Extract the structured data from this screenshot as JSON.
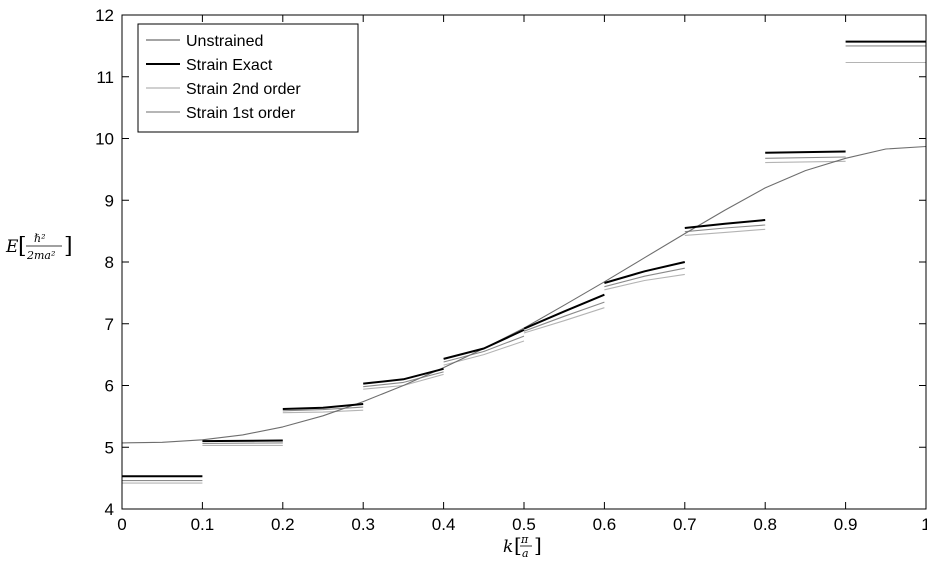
{
  "chart_data": {
    "type": "line",
    "title": "",
    "xlabel": "k",
    "xlabel_unit_num": "π",
    "xlabel_unit_den": "a",
    "ylabel": "E",
    "ylabel_unit_num": "ℏ²",
    "ylabel_unit_den": "2ma²",
    "xlim": [
      0,
      1
    ],
    "ylim": [
      4,
      12
    ],
    "xticks": [
      0,
      0.1,
      0.2,
      0.3,
      0.4,
      0.5,
      0.6,
      0.7,
      0.8,
      0.9,
      1
    ],
    "xtick_labels": [
      "0",
      "0.1",
      "0.2",
      "0.3",
      "0.4",
      "0.5",
      "0.6",
      "0.7",
      "0.8",
      "0.9",
      "1"
    ],
    "yticks": [
      4,
      5,
      6,
      7,
      8,
      9,
      10,
      11,
      12
    ],
    "ytick_labels": [
      "4",
      "5",
      "6",
      "7",
      "8",
      "9",
      "10",
      "11",
      "12"
    ],
    "grid": false,
    "legend_position": "top-left",
    "series": [
      {
        "name": "Unstrained",
        "color": "#6e6e6e",
        "style": "thin",
        "segments": [
          [
            [
              0,
              5.07
            ],
            [
              0.05,
              5.08
            ],
            [
              0.1,
              5.12
            ],
            [
              0.15,
              5.2
            ],
            [
              0.2,
              5.33
            ],
            [
              0.25,
              5.51
            ],
            [
              0.3,
              5.74
            ],
            [
              0.35,
              6.0
            ],
            [
              0.4,
              6.29
            ],
            [
              0.45,
              6.6
            ],
            [
              0.5,
              6.93
            ],
            [
              0.55,
              7.3
            ],
            [
              0.6,
              7.68
            ],
            [
              0.65,
              8.07
            ],
            [
              0.7,
              8.46
            ],
            [
              0.75,
              8.84
            ],
            [
              0.8,
              9.2
            ],
            [
              0.85,
              9.48
            ],
            [
              0.9,
              9.68
            ],
            [
              0.95,
              9.83
            ],
            [
              1.0,
              9.87
            ]
          ]
        ]
      },
      {
        "name": "Strain Exact",
        "color": "#000000",
        "style": "thick",
        "segments": [
          [
            [
              0,
              4.53
            ],
            [
              0.1,
              4.53
            ]
          ],
          [
            [
              0.1,
              5.1
            ],
            [
              0.2,
              5.11
            ]
          ],
          [
            [
              0.2,
              5.62
            ],
            [
              0.25,
              5.64
            ],
            [
              0.3,
              5.7
            ]
          ],
          [
            [
              0.3,
              6.03
            ],
            [
              0.35,
              6.1
            ],
            [
              0.4,
              6.27
            ]
          ],
          [
            [
              0.4,
              6.43
            ],
            [
              0.45,
              6.6
            ],
            [
              0.5,
              6.9
            ]
          ],
          [
            [
              0.5,
              6.92
            ],
            [
              0.55,
              7.2
            ],
            [
              0.6,
              7.47
            ]
          ],
          [
            [
              0.6,
              7.66
            ],
            [
              0.65,
              7.85
            ],
            [
              0.7,
              8.0
            ]
          ],
          [
            [
              0.7,
              8.55
            ],
            [
              0.75,
              8.62
            ],
            [
              0.8,
              8.68
            ]
          ],
          [
            [
              0.8,
              9.77
            ],
            [
              0.9,
              9.79
            ]
          ],
          [
            [
              0.9,
              11.57
            ],
            [
              1.0,
              11.57
            ]
          ]
        ]
      },
      {
        "name": "Strain 2nd order",
        "color": "#b4b4b4",
        "style": "thin",
        "segments": [
          [
            [
              0,
              4.42
            ],
            [
              0.1,
              4.42
            ]
          ],
          [
            [
              0.1,
              5.03
            ],
            [
              0.2,
              5.03
            ]
          ],
          [
            [
              0.2,
              5.56
            ],
            [
              0.25,
              5.57
            ],
            [
              0.3,
              5.6
            ]
          ],
          [
            [
              0.3,
              5.94
            ],
            [
              0.35,
              6.0
            ],
            [
              0.4,
              6.18
            ]
          ],
          [
            [
              0.4,
              6.33
            ],
            [
              0.45,
              6.5
            ],
            [
              0.5,
              6.72
            ]
          ],
          [
            [
              0.5,
              6.85
            ],
            [
              0.55,
              7.05
            ],
            [
              0.6,
              7.26
            ]
          ],
          [
            [
              0.6,
              7.55
            ],
            [
              0.65,
              7.7
            ],
            [
              0.7,
              7.8
            ]
          ],
          [
            [
              0.7,
              8.43
            ],
            [
              0.75,
              8.48
            ],
            [
              0.8,
              8.53
            ]
          ],
          [
            [
              0.8,
              9.61
            ],
            [
              0.9,
              9.63
            ]
          ],
          [
            [
              0.9,
              11.23
            ],
            [
              1.0,
              11.23
            ]
          ]
        ]
      },
      {
        "name": "Strain 1st order",
        "color": "#8a8a8a",
        "style": "thin",
        "segments": [
          [
            [
              0,
              4.46
            ],
            [
              0.1,
              4.46
            ]
          ],
          [
            [
              0.1,
              5.06
            ],
            [
              0.2,
              5.07
            ]
          ],
          [
            [
              0.2,
              5.59
            ],
            [
              0.25,
              5.61
            ],
            [
              0.3,
              5.65
            ]
          ],
          [
            [
              0.3,
              5.98
            ],
            [
              0.35,
              6.05
            ],
            [
              0.4,
              6.22
            ]
          ],
          [
            [
              0.4,
              6.38
            ],
            [
              0.45,
              6.55
            ],
            [
              0.5,
              6.8
            ]
          ],
          [
            [
              0.5,
              6.88
            ],
            [
              0.55,
              7.12
            ],
            [
              0.6,
              7.35
            ]
          ],
          [
            [
              0.6,
              7.6
            ],
            [
              0.65,
              7.77
            ],
            [
              0.7,
              7.9
            ]
          ],
          [
            [
              0.7,
              8.49
            ],
            [
              0.75,
              8.55
            ],
            [
              0.8,
              8.6
            ]
          ],
          [
            [
              0.8,
              9.68
            ],
            [
              0.9,
              9.7
            ]
          ],
          [
            [
              0.9,
              11.5
            ],
            [
              1.0,
              11.5
            ]
          ]
        ]
      }
    ]
  }
}
